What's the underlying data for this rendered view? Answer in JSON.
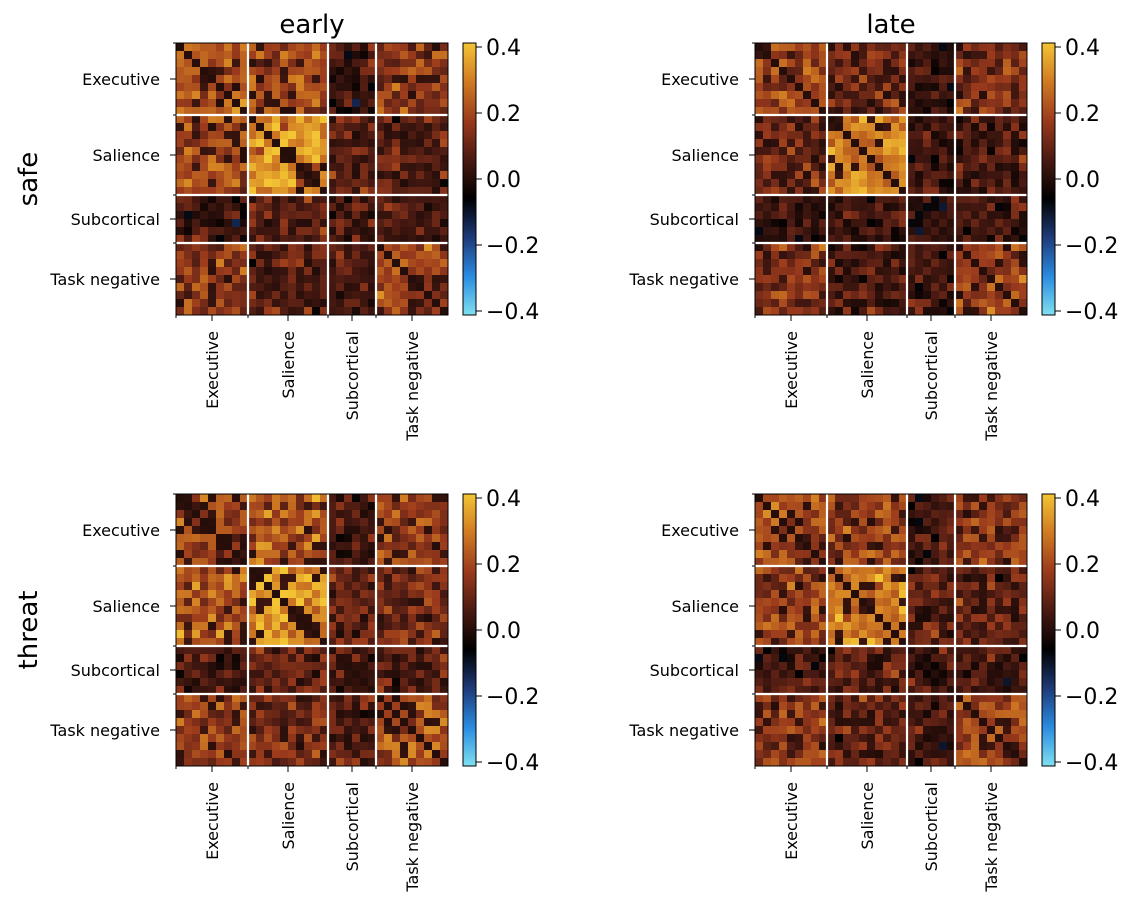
{
  "chart_data": {
    "type": "heatmap",
    "column_titles": [
      "early",
      "late"
    ],
    "row_labels": [
      "safe",
      "threat"
    ],
    "network_labels": [
      "Executive",
      "Salience",
      "Subcortical",
      "Task negative"
    ],
    "network_sizes": [
      9,
      10,
      6,
      9
    ],
    "colorbar": {
      "ticks": [
        "0.4",
        "0.2",
        "0.0",
        "−0.2",
        "−0.4"
      ],
      "vmin": -0.4,
      "vmax": 0.4,
      "colors": [
        "#7fe0f0",
        "#2a8be0",
        "#1e3a78",
        "#000000",
        "#4a1a12",
        "#9a3a1c",
        "#d07a22",
        "#f3c433"
      ]
    },
    "panels": [
      {
        "row": "safe",
        "column": "early",
        "block_means": [
          [
            0.22,
            0.2,
            0.04,
            0.15
          ],
          [
            0.2,
            0.32,
            0.1,
            0.08
          ],
          [
            0.04,
            0.1,
            0.06,
            0.04
          ],
          [
            0.15,
            0.08,
            0.04,
            0.18
          ]
        ]
      },
      {
        "row": "safe",
        "column": "late",
        "block_means": [
          [
            0.18,
            0.12,
            0.02,
            0.14
          ],
          [
            0.12,
            0.3,
            0.05,
            0.06
          ],
          [
            0.02,
            0.05,
            0.04,
            0.05
          ],
          [
            0.14,
            0.06,
            0.05,
            0.16
          ]
        ]
      },
      {
        "row": "threat",
        "column": "early",
        "block_means": [
          [
            0.2,
            0.22,
            0.06,
            0.18
          ],
          [
            0.22,
            0.32,
            0.1,
            0.12
          ],
          [
            0.06,
            0.1,
            0.06,
            0.08
          ],
          [
            0.18,
            0.12,
            0.08,
            0.22
          ]
        ]
      },
      {
        "row": "threat",
        "column": "late",
        "block_means": [
          [
            0.2,
            0.18,
            0.04,
            0.16
          ],
          [
            0.18,
            0.3,
            0.08,
            0.1
          ],
          [
            0.04,
            0.08,
            0.06,
            0.06
          ],
          [
            0.16,
            0.1,
            0.06,
            0.2
          ]
        ]
      }
    ]
  }
}
